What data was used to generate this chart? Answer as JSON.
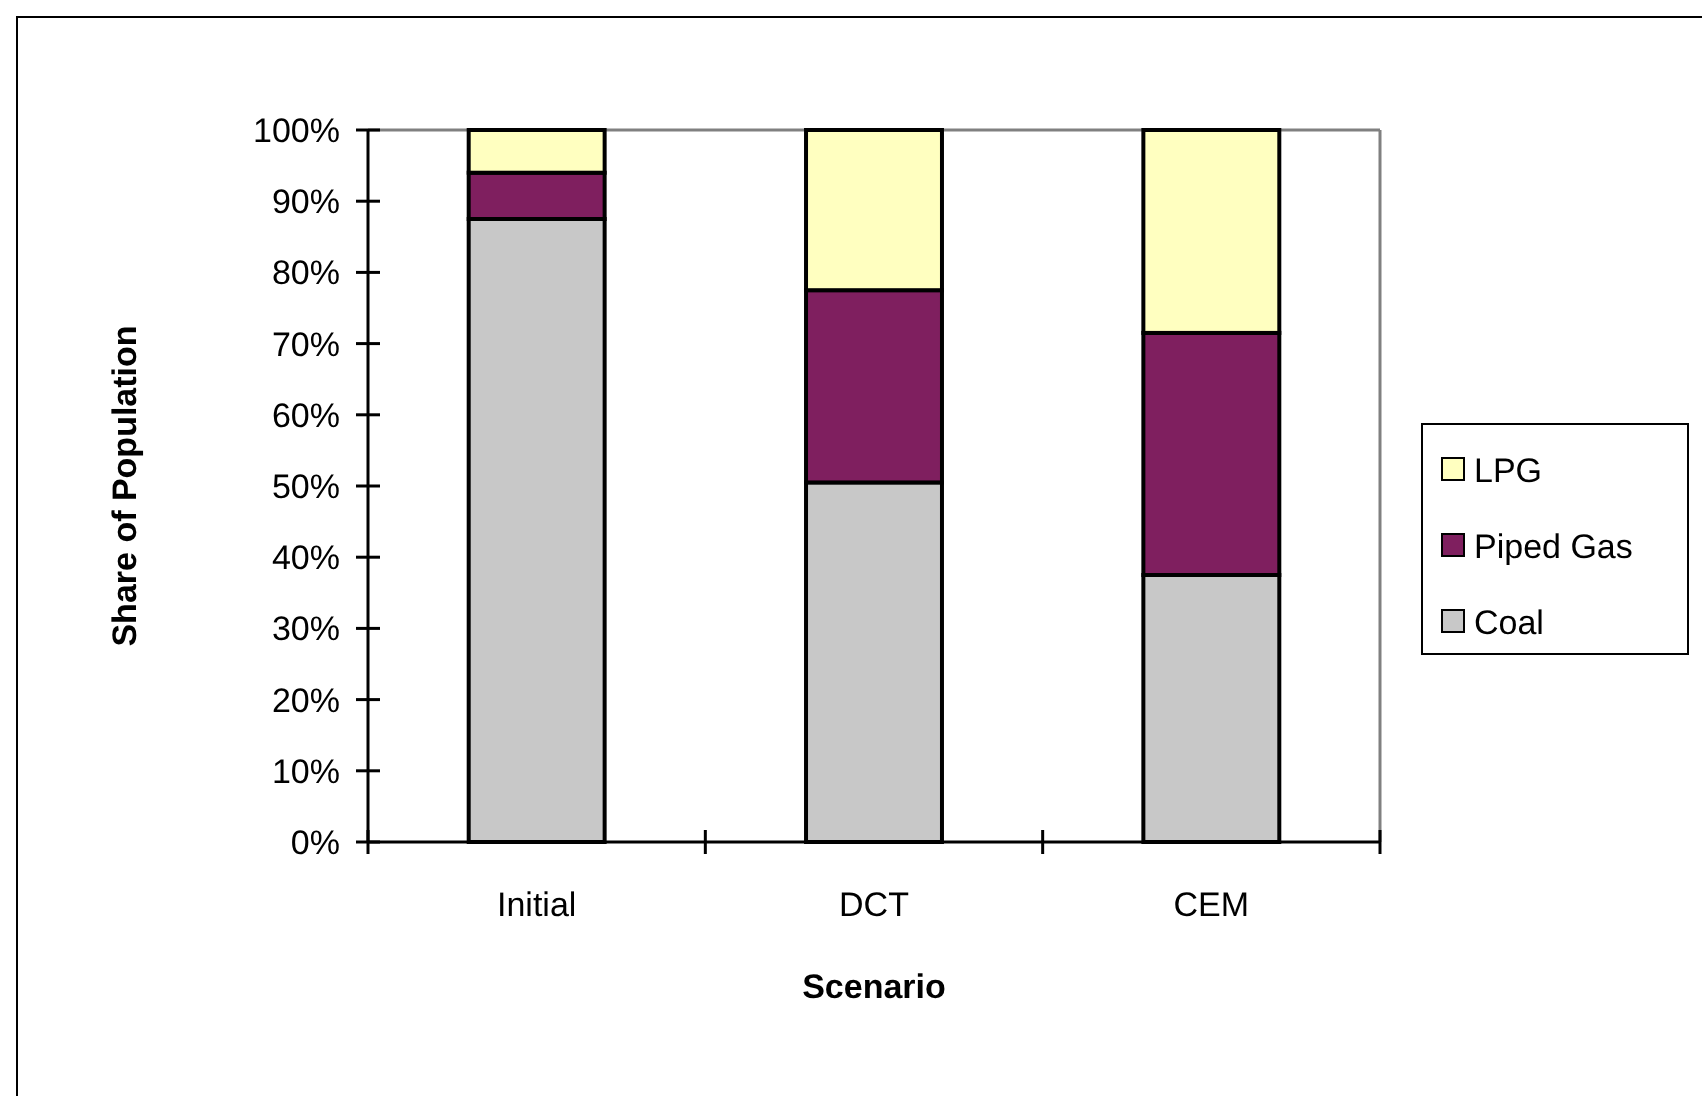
{
  "chart_data": {
    "type": "bar",
    "stacked": true,
    "xlabel": "Scenario",
    "ylabel": "Share of Population",
    "categories": [
      "Initial",
      "DCT",
      "CEM"
    ],
    "series": [
      {
        "name": "Coal",
        "color": "#c8c8c8",
        "values": [
          87.5,
          50.5,
          37.5
        ]
      },
      {
        "name": "Piped Gas",
        "color": "#7f1f5f",
        "values": [
          6.5,
          27,
          34
        ]
      },
      {
        "name": "LPG",
        "color": "#ffffc0",
        "values": [
          6,
          22.5,
          28.5
        ]
      }
    ],
    "ylim": [
      0,
      100
    ],
    "yticks": [
      {
        "value": 0,
        "label": "0%"
      },
      {
        "value": 10,
        "label": "10%"
      },
      {
        "value": 20,
        "label": "20%"
      },
      {
        "value": 30,
        "label": "30%"
      },
      {
        "value": 40,
        "label": "40%"
      },
      {
        "value": 50,
        "label": "50%"
      },
      {
        "value": 60,
        "label": "60%"
      },
      {
        "value": 70,
        "label": "70%"
      },
      {
        "value": 80,
        "label": "80%"
      },
      {
        "value": 90,
        "label": "90%"
      },
      {
        "value": 100,
        "label": "100%"
      }
    ],
    "legend": "right"
  }
}
